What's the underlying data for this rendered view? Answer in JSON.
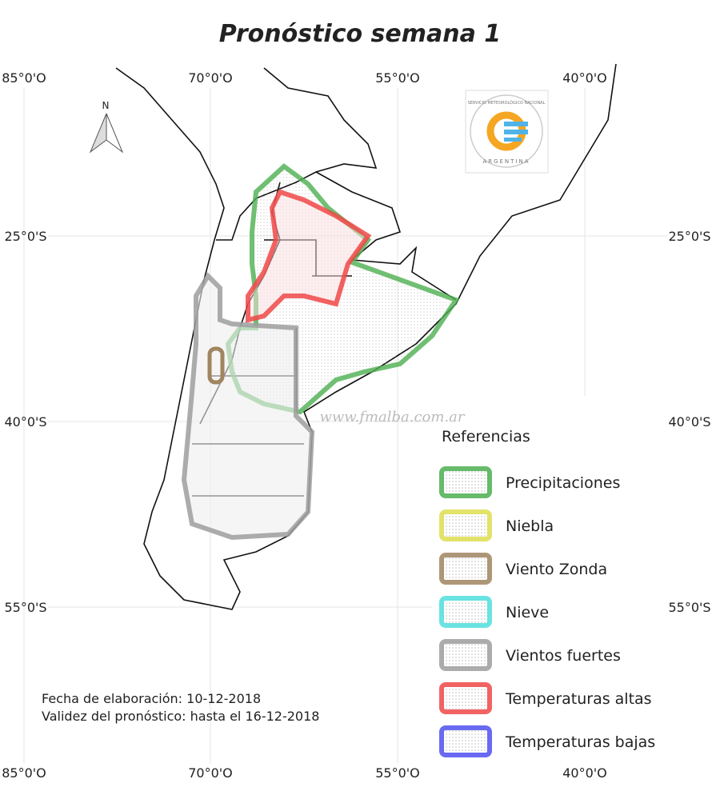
{
  "title": "Pronóstico semana 1",
  "grid": {
    "lon_labels": [
      "85°0'O",
      "70°0'O",
      "55°0'O",
      "40°0'O"
    ],
    "lat_labels": [
      "25°0'S",
      "40°0'S",
      "55°0'S"
    ]
  },
  "north_arrow": "N",
  "logo": {
    "top_text": "SERVICIO METEOROLÓGICO NACIONAL",
    "bottom_text": "ARGENTINA"
  },
  "watermark": "www.fmalba.com.ar",
  "legend": {
    "title": "Referencias",
    "items": [
      {
        "label": "Precipitaciones",
        "color": "#4caf50"
      },
      {
        "label": "Niebla",
        "color": "#dede50"
      },
      {
        "label": "Viento Zonda",
        "color": "#a08560"
      },
      {
        "label": "Nieve",
        "color": "#50dede"
      },
      {
        "label": "Vientos fuertes",
        "color": "#9e9e9e"
      },
      {
        "label": "Temperaturas altas",
        "color": "#f04848"
      },
      {
        "label": "Temperaturas bajas",
        "color": "#5050f0"
      }
    ]
  },
  "notes": [
    "Fecha de elaboración: 10-12-2018",
    "Validez del pronóstico: hasta el 16-12-2018"
  ]
}
